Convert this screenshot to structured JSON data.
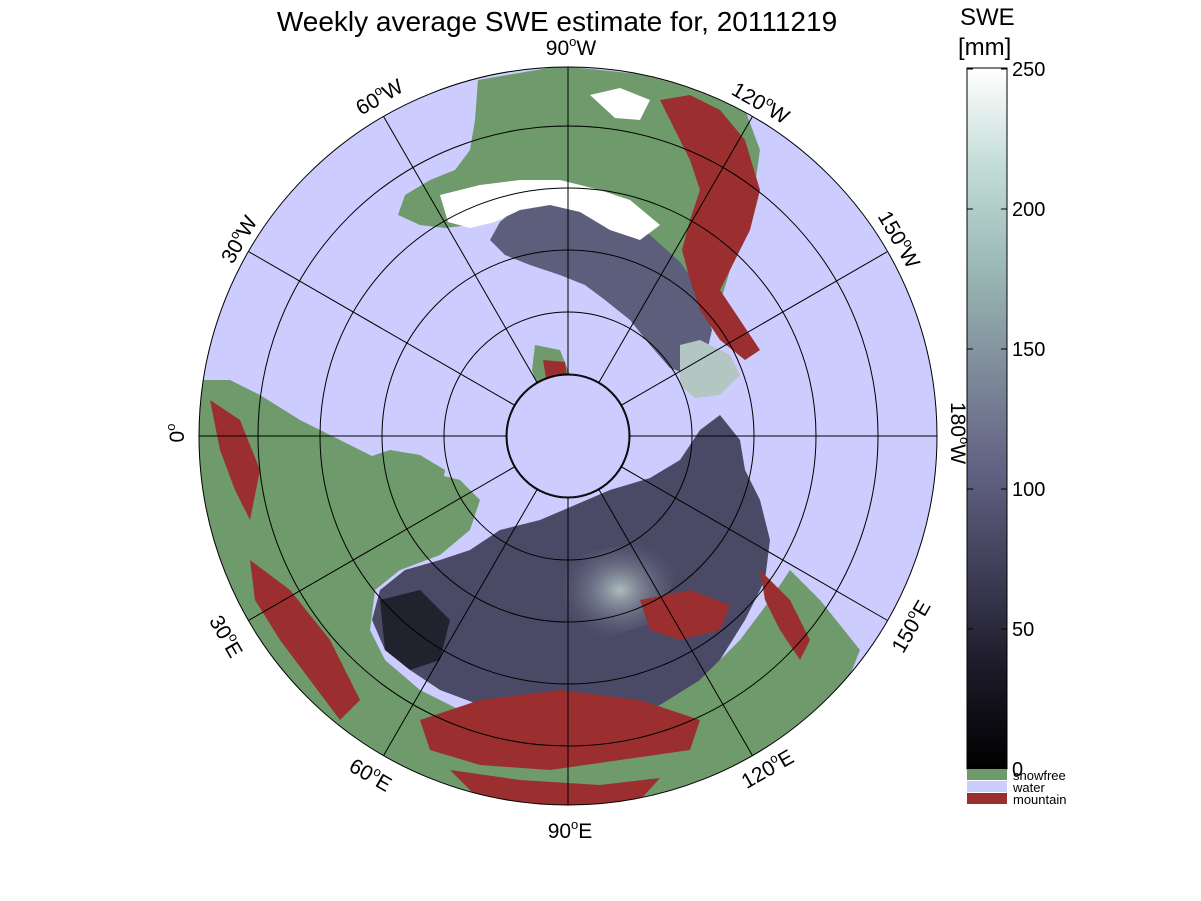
{
  "title": "Weekly average SWE estimate for, 20111219",
  "map": {
    "projection": "north polar stereographic",
    "longitude_labels": [
      {
        "deg": "90",
        "hemi": "W"
      },
      {
        "deg": "120",
        "hemi": "W"
      },
      {
        "deg": "150",
        "hemi": "W"
      },
      {
        "deg": "180",
        "hemi": "W"
      },
      {
        "deg": "150",
        "hemi": "E"
      },
      {
        "deg": "120",
        "hemi": "E"
      },
      {
        "deg": "90",
        "hemi": "E"
      },
      {
        "deg": "60",
        "hemi": "E"
      },
      {
        "deg": "30",
        "hemi": "E"
      },
      {
        "deg": "0",
        "hemi": ""
      },
      {
        "deg": "30",
        "hemi": "W"
      },
      {
        "deg": "60",
        "hemi": "W"
      }
    ],
    "colors": {
      "water": "#ccccff",
      "snowfree": "#6f9a6b",
      "mountain": "#9b2f2f",
      "coast": "#000000"
    }
  },
  "colorbar": {
    "title_line1": "SWE",
    "title_line2": "[mm]",
    "range": [
      0,
      250
    ],
    "ticks": [
      "0",
      "50",
      "100",
      "150",
      "200",
      "250"
    ],
    "gradient": [
      "#000000",
      "#1c1a28",
      "#403f58",
      "#626283",
      "#7f8c9b",
      "#9ab8b4",
      "#c2dbd6",
      "#ffffff"
    ],
    "categories": [
      {
        "label": "snowfree",
        "color": "#6f9a6b"
      },
      {
        "label": "water",
        "color": "#ccccff"
      },
      {
        "label": "mountain",
        "color": "#9b2f2f"
      }
    ]
  }
}
